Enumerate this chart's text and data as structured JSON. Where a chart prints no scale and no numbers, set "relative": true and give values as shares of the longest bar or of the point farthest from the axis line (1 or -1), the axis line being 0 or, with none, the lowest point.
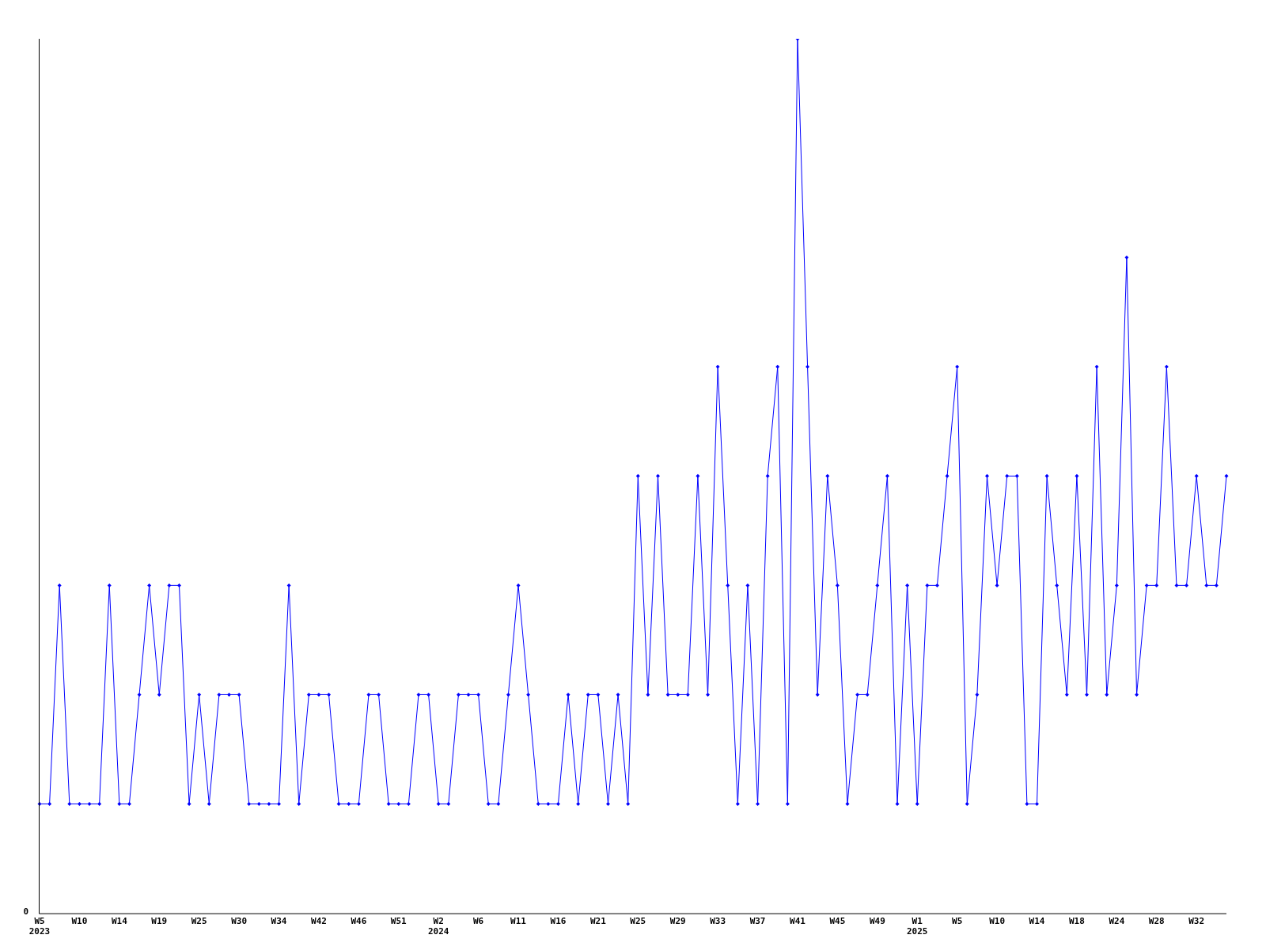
{
  "chart_data": {
    "type": "line",
    "relative": true,
    "categories": [
      "W5\n2023",
      null,
      null,
      null,
      "W10",
      null,
      null,
      null,
      "W14",
      null,
      null,
      null,
      "W19",
      null,
      null,
      null,
      "W25",
      null,
      null,
      null,
      "W30",
      null,
      null,
      null,
      "W34",
      null,
      null,
      null,
      "W42",
      null,
      null,
      null,
      "W46",
      null,
      null,
      null,
      "W51",
      null,
      null,
      null,
      "W2\n2024",
      null,
      null,
      null,
      "W6",
      null,
      null,
      null,
      "W11",
      null,
      null,
      null,
      "W16",
      null,
      null,
      null,
      "W21",
      null,
      null,
      null,
      "W25",
      null,
      null,
      null,
      "W29",
      null,
      null,
      null,
      "W33",
      null,
      null,
      null,
      "W37",
      null,
      null,
      null,
      "W41",
      null,
      null,
      null,
      "W45",
      null,
      null,
      null,
      "W49",
      null,
      null,
      null,
      "W1\n2025",
      null,
      null,
      null,
      "W5",
      null,
      null,
      null,
      "W10",
      null,
      null,
      null,
      "W14",
      null,
      null,
      null,
      "W18",
      null,
      null,
      null,
      "W24",
      null,
      null,
      null,
      "W28",
      null,
      null,
      null,
      "W32",
      null,
      null,
      null
    ],
    "series": [
      {
        "color": "#0000ff",
        "values": [
          0.125,
          0.125,
          0.375,
          0.125,
          0.125,
          0.125,
          0.125,
          0.375,
          0.125,
          0.125,
          0.25,
          0.375,
          0.25,
          0.375,
          0.375,
          0.125,
          0.25,
          0.125,
          0.25,
          0.25,
          0.25,
          0.125,
          0.125,
          0.125,
          0.125,
          0.375,
          0.125,
          0.25,
          0.25,
          0.25,
          0.125,
          0.125,
          0.125,
          0.25,
          0.25,
          0.125,
          0.125,
          0.125,
          0.25,
          0.25,
          0.125,
          0.125,
          0.25,
          0.25,
          0.25,
          0.125,
          0.125,
          0.25,
          0.375,
          0.25,
          0.125,
          0.125,
          0.125,
          0.25,
          0.125,
          0.25,
          0.25,
          0.125,
          0.25,
          0.125,
          0.5,
          0.25,
          0.5,
          0.25,
          0.25,
          0.25,
          0.5,
          0.25,
          0.625,
          0.375,
          0.125,
          0.375,
          0.125,
          0.5,
          0.625,
          0.125,
          1,
          0.625,
          0.25,
          0.5,
          0.375,
          0.125,
          0.25,
          0.25,
          0.375,
          0.5,
          0.125,
          0.375,
          0.125,
          0.375,
          0.375,
          0.5,
          0.625,
          0.125,
          0.25,
          0.5,
          0.375,
          0.5,
          0.5,
          0.125,
          0.125,
          0.5,
          0.375,
          0.25,
          0.5,
          0.25,
          0.625,
          0.25,
          0.375,
          0.75,
          0.25,
          0.375,
          0.375,
          0.625,
          0.375,
          0.375,
          0.5,
          0.375,
          0.375,
          0.5
        ]
      }
    ],
    "marker": "diamond",
    "grid": false,
    "legend": false,
    "annotations": [
      "0"
    ]
  }
}
